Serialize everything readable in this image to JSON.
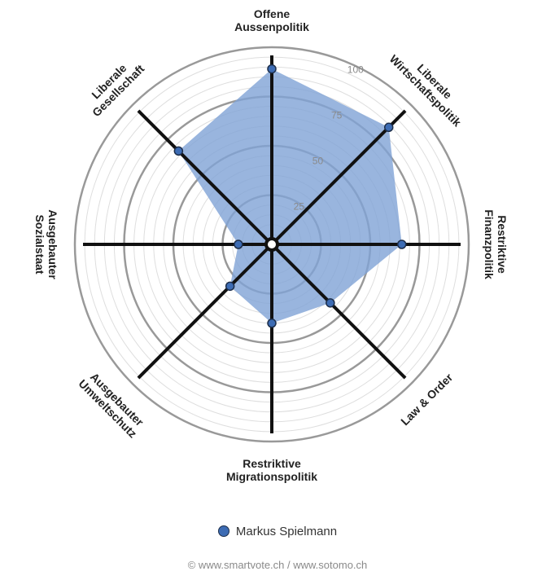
{
  "chart_data": {
    "type": "radar",
    "axes": [
      {
        "label": [
          "Offene",
          "Aussenpolitik"
        ]
      },
      {
        "label": [
          "Liberale",
          "Wirtschaftspolitik"
        ]
      },
      {
        "label": [
          "Restriktive",
          "Finanzpolitik"
        ]
      },
      {
        "label": [
          "Law & Order"
        ]
      },
      {
        "label": [
          "Restriktive",
          "Migrationspolitik"
        ]
      },
      {
        "label": [
          "Ausgebauter",
          "Umweltschutz"
        ]
      },
      {
        "label": [
          "Ausgebauter",
          "Sozialstaat"
        ]
      },
      {
        "label": [
          "Liberale",
          "Gesellschaft"
        ]
      }
    ],
    "rlim": [
      0,
      100
    ],
    "ticks": [
      25,
      50,
      75,
      100
    ],
    "series": [
      {
        "name": "Markus Spielmann",
        "color": "#3d6cb4",
        "fill": "#7fa3d6",
        "values": [
          89,
          84,
          66,
          42,
          40,
          30,
          17,
          67
        ]
      }
    ]
  },
  "legend": {
    "label": "Markus Spielmann"
  },
  "footer": "© www.smartvote.ch / www.sotomo.ch"
}
